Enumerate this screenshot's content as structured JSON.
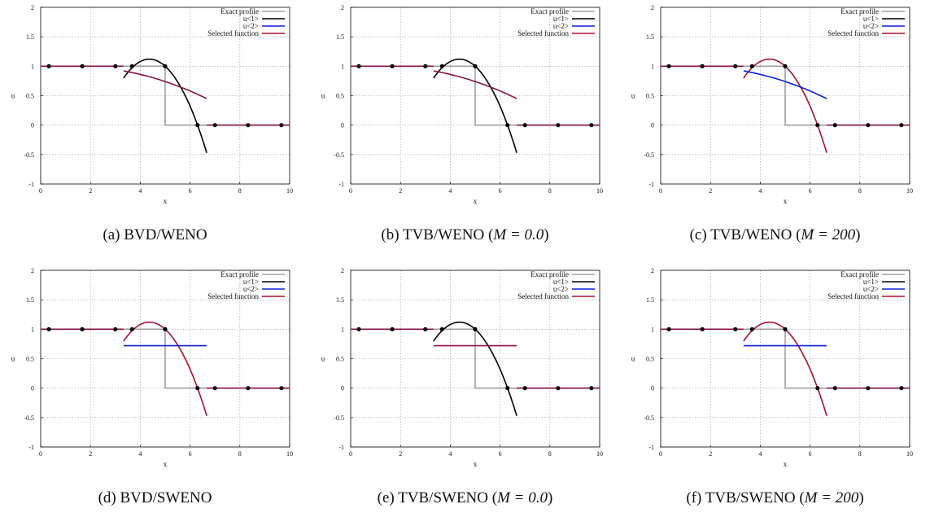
{
  "colors": {
    "exact": "#a0a0a0",
    "u1": "#000000",
    "u2": "#0b1fd8",
    "selected": "#a8102f",
    "overlap": "#8a1248",
    "grid": "#9a9a9a",
    "dots": "#000000"
  },
  "legend_labels": [
    "Exact profile",
    "u<1>",
    "u<2>",
    "Selected function"
  ],
  "chart_data": [
    {
      "type": "line",
      "caption_prefix": "(a)",
      "caption_text": "BVD/WENO",
      "caption_math": "",
      "xlabel": "x",
      "ylabel": "u",
      "xlim": [
        0,
        10
      ],
      "ylim": [
        -1,
        2
      ],
      "xticks": [
        0,
        2,
        4,
        6,
        8,
        10
      ],
      "yticks": [
        -1,
        -0.5,
        0,
        0.5,
        1,
        1.5,
        2
      ],
      "grid": true,
      "legend_position": "top-right",
      "exact_profile": {
        "x": [
          0,
          5,
          5,
          10
        ],
        "y": [
          1,
          1,
          0,
          0
        ]
      },
      "u1": {
        "x_range": [
          3.33,
          6.67
        ],
        "points": [
          [
            3.33,
            0.82
          ],
          [
            4.35,
            1.12
          ],
          [
            5.0,
            1.0
          ],
          [
            6.3,
            0.0
          ],
          [
            6.67,
            -0.47
          ]
        ]
      },
      "u2": {
        "x_range": [
          3.33,
          6.67
        ],
        "points": [
          [
            3.33,
            0.92
          ],
          [
            5.0,
            0.74
          ],
          [
            6.67,
            0.45
          ]
        ]
      },
      "selected": "u2",
      "left_x": [
        0,
        3.33
      ],
      "left_y": 1,
      "right_x": [
        6.67,
        10
      ],
      "right_y": 0,
      "markers": [
        [
          0.33,
          1
        ],
        [
          1.67,
          1
        ],
        [
          3.0,
          1
        ],
        [
          3.67,
          1
        ],
        [
          5.0,
          1
        ],
        [
          6.3,
          0
        ],
        [
          7.0,
          0
        ],
        [
          8.33,
          0
        ],
        [
          9.67,
          0
        ]
      ]
    },
    {
      "type": "line",
      "caption_prefix": "(b)",
      "caption_text": "TVB/WENO (",
      "caption_math": "M = 0.0",
      "xlabel": "x",
      "ylabel": "u",
      "xlim": [
        0,
        10
      ],
      "ylim": [
        -1,
        2
      ],
      "xticks": [
        0,
        2,
        4,
        6,
        8,
        10
      ],
      "yticks": [
        -1,
        -0.5,
        0,
        0.5,
        1,
        1.5,
        2
      ],
      "grid": true,
      "legend_position": "top-right",
      "exact_profile": {
        "x": [
          0,
          5,
          5,
          10
        ],
        "y": [
          1,
          1,
          0,
          0
        ]
      },
      "u1": {
        "x_range": [
          3.33,
          6.67
        ],
        "points": [
          [
            3.33,
            0.82
          ],
          [
            4.35,
            1.12
          ],
          [
            5.0,
            1.0
          ],
          [
            6.3,
            0.0
          ],
          [
            6.67,
            -0.47
          ]
        ]
      },
      "u2": {
        "x_range": [
          3.33,
          6.67
        ],
        "points": [
          [
            3.33,
            0.92
          ],
          [
            5.0,
            0.74
          ],
          [
            6.67,
            0.45
          ]
        ]
      },
      "selected": "u2",
      "left_x": [
        0,
        3.33
      ],
      "left_y": 1,
      "right_x": [
        6.67,
        10
      ],
      "right_y": 0,
      "markers": [
        [
          0.33,
          1
        ],
        [
          1.67,
          1
        ],
        [
          3.0,
          1
        ],
        [
          3.67,
          1
        ],
        [
          5.0,
          1
        ],
        [
          6.3,
          0
        ],
        [
          7.0,
          0
        ],
        [
          8.33,
          0
        ],
        [
          9.67,
          0
        ]
      ]
    },
    {
      "type": "line",
      "caption_prefix": "(c)",
      "caption_text": "TVB/WENO (",
      "caption_math": "M = 200",
      "xlabel": "x",
      "ylabel": "u",
      "xlim": [
        0,
        10
      ],
      "ylim": [
        -1,
        2
      ],
      "xticks": [
        0,
        2,
        4,
        6,
        8,
        10
      ],
      "yticks": [
        -1,
        -0.5,
        0,
        0.5,
        1,
        1.5,
        2
      ],
      "grid": true,
      "legend_position": "top-right",
      "exact_profile": {
        "x": [
          0,
          5,
          5,
          10
        ],
        "y": [
          1,
          1,
          0,
          0
        ]
      },
      "u1": {
        "x_range": [
          3.33,
          6.67
        ],
        "points": [
          [
            3.33,
            0.82
          ],
          [
            4.35,
            1.12
          ],
          [
            5.0,
            1.0
          ],
          [
            6.3,
            0.0
          ],
          [
            6.67,
            -0.47
          ]
        ]
      },
      "u2": {
        "x_range": [
          3.33,
          6.67
        ],
        "points": [
          [
            3.33,
            0.92
          ],
          [
            5.0,
            0.74
          ],
          [
            6.67,
            0.45
          ]
        ]
      },
      "selected": "u1",
      "left_x": [
        0,
        3.33
      ],
      "left_y": 1,
      "right_x": [
        6.67,
        10
      ],
      "right_y": 0,
      "markers": [
        [
          0.33,
          1
        ],
        [
          1.67,
          1
        ],
        [
          3.0,
          1
        ],
        [
          3.67,
          1
        ],
        [
          5.0,
          1
        ],
        [
          6.3,
          0
        ],
        [
          7.0,
          0
        ],
        [
          8.33,
          0
        ],
        [
          9.67,
          0
        ]
      ]
    },
    {
      "type": "line",
      "caption_prefix": "(d)",
      "caption_text": "BVD/SWENO",
      "caption_math": "",
      "xlabel": "x",
      "ylabel": "u",
      "xlim": [
        0,
        10
      ],
      "ylim": [
        -1,
        2
      ],
      "xticks": [
        0,
        2,
        4,
        6,
        8,
        10
      ],
      "yticks": [
        -1,
        -0.5,
        0,
        0.5,
        1,
        1.5,
        2
      ],
      "grid": true,
      "legend_position": "top-right",
      "exact_profile": {
        "x": [
          0,
          5,
          5,
          10
        ],
        "y": [
          1,
          1,
          0,
          0
        ]
      },
      "u1": {
        "x_range": [
          3.33,
          6.67
        ],
        "points": [
          [
            3.33,
            0.82
          ],
          [
            4.35,
            1.12
          ],
          [
            5.0,
            1.0
          ],
          [
            6.3,
            0.0
          ],
          [
            6.67,
            -0.47
          ]
        ]
      },
      "u2": {
        "x_range": [
          3.33,
          6.67
        ],
        "points": [
          [
            3.33,
            0.72
          ],
          [
            6.67,
            0.72
          ]
        ]
      },
      "selected": "u1",
      "left_x": [
        0,
        3.33
      ],
      "left_y": 1,
      "right_x": [
        6.67,
        10
      ],
      "right_y": 0,
      "markers": [
        [
          0.33,
          1
        ],
        [
          1.67,
          1
        ],
        [
          3.0,
          1
        ],
        [
          3.67,
          1
        ],
        [
          5.0,
          1
        ],
        [
          6.3,
          0
        ],
        [
          7.0,
          0
        ],
        [
          8.33,
          0
        ],
        [
          9.67,
          0
        ]
      ]
    },
    {
      "type": "line",
      "caption_prefix": "(e)",
      "caption_text": "TVB/SWENO (",
      "caption_math": "M = 0.0",
      "xlabel": "x",
      "ylabel": "u",
      "xlim": [
        0,
        10
      ],
      "ylim": [
        -1,
        2
      ],
      "xticks": [
        0,
        2,
        4,
        6,
        8,
        10
      ],
      "yticks": [
        -1,
        -0.5,
        0,
        0.5,
        1,
        1.5,
        2
      ],
      "grid": true,
      "legend_position": "top-right",
      "exact_profile": {
        "x": [
          0,
          5,
          5,
          10
        ],
        "y": [
          1,
          1,
          0,
          0
        ]
      },
      "u1": {
        "x_range": [
          3.33,
          6.67
        ],
        "points": [
          [
            3.33,
            0.82
          ],
          [
            4.35,
            1.12
          ],
          [
            5.0,
            1.0
          ],
          [
            6.3,
            0.0
          ],
          [
            6.67,
            -0.47
          ]
        ]
      },
      "u2": {
        "x_range": [
          3.33,
          6.67
        ],
        "points": [
          [
            3.33,
            0.72
          ],
          [
            6.67,
            0.72
          ]
        ]
      },
      "selected": "u2",
      "left_x": [
        0,
        3.33
      ],
      "left_y": 1,
      "right_x": [
        6.67,
        10
      ],
      "right_y": 0,
      "markers": [
        [
          0.33,
          1
        ],
        [
          1.67,
          1
        ],
        [
          3.0,
          1
        ],
        [
          3.67,
          1
        ],
        [
          5.0,
          1
        ],
        [
          6.3,
          0
        ],
        [
          7.0,
          0
        ],
        [
          8.33,
          0
        ],
        [
          9.67,
          0
        ]
      ]
    },
    {
      "type": "line",
      "caption_prefix": "(f)",
      "caption_text": "TVB/SWENO (",
      "caption_math": "M = 200",
      "xlabel": "x",
      "ylabel": "u",
      "xlim": [
        0,
        10
      ],
      "ylim": [
        -1,
        2
      ],
      "xticks": [
        0,
        2,
        4,
        6,
        8,
        10
      ],
      "yticks": [
        -1,
        -0.5,
        0,
        0.5,
        1,
        1.5,
        2
      ],
      "grid": true,
      "legend_position": "top-right",
      "exact_profile": {
        "x": [
          0,
          5,
          5,
          10
        ],
        "y": [
          1,
          1,
          0,
          0
        ]
      },
      "u1": {
        "x_range": [
          3.33,
          6.67
        ],
        "points": [
          [
            3.33,
            0.82
          ],
          [
            4.35,
            1.12
          ],
          [
            5.0,
            1.0
          ],
          [
            6.3,
            0.0
          ],
          [
            6.67,
            -0.47
          ]
        ]
      },
      "u2": {
        "x_range": [
          3.33,
          6.67
        ],
        "points": [
          [
            3.33,
            0.72
          ],
          [
            6.67,
            0.72
          ]
        ]
      },
      "selected": "u1",
      "left_x": [
        0,
        3.33
      ],
      "left_y": 1,
      "right_x": [
        6.67,
        10
      ],
      "right_y": 0,
      "markers": [
        [
          0.33,
          1
        ],
        [
          1.67,
          1
        ],
        [
          3.0,
          1
        ],
        [
          3.67,
          1
        ],
        [
          5.0,
          1
        ],
        [
          6.3,
          0
        ],
        [
          7.0,
          0
        ],
        [
          8.33,
          0
        ],
        [
          9.67,
          0
        ]
      ]
    }
  ]
}
